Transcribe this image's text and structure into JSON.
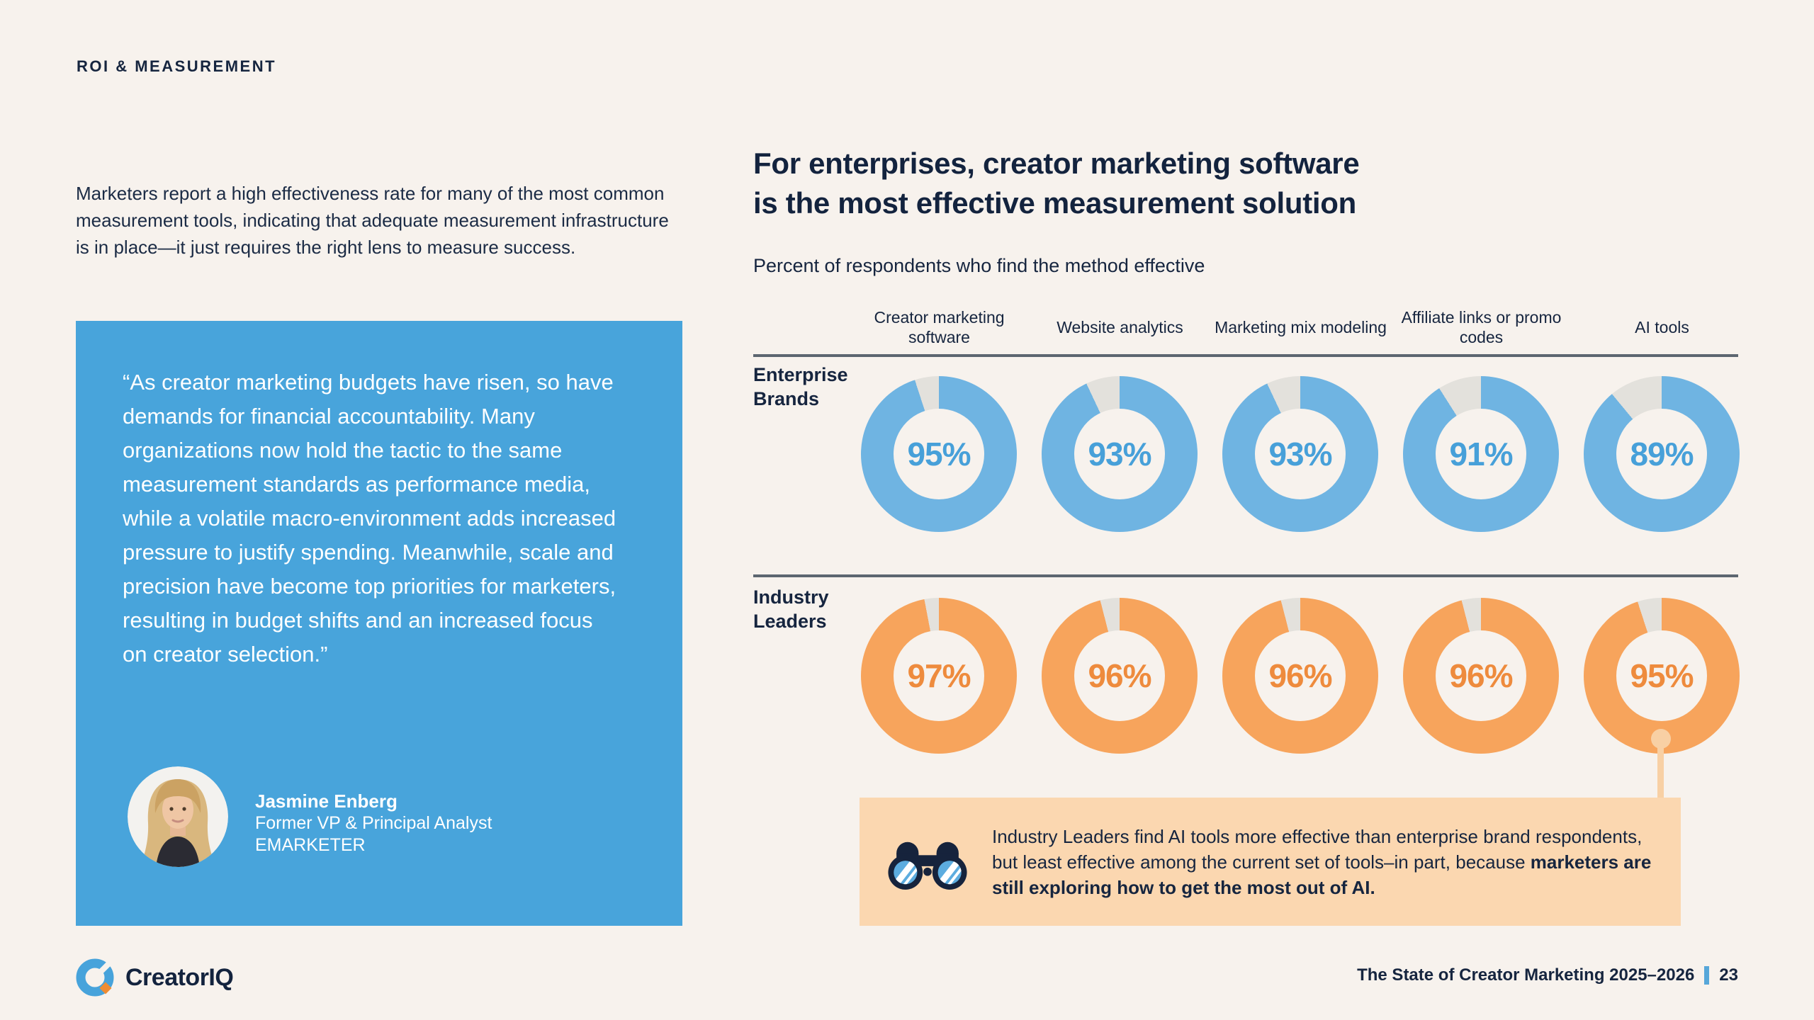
{
  "page": {
    "eyebrow": "ROI & MEASUREMENT",
    "intro": "Marketers report a high effectiveness rate for many of the most common measurement tools, indicating that adequate measurement infrastructure is in place—it just requires the right lens to measure success."
  },
  "quote": {
    "text": "“As creator marketing budgets have risen, so have demands for financial accountability. Many organizations now hold the tactic to the same measurement standards as performance media, while a volatile macro-environment adds increased pressure to justify spending. Meanwhile, scale and precision have become top priorities for marketers, resulting in budget shifts and an increased focus on creator selection.”",
    "author": "Jasmine Enberg",
    "role": "Former VP & Principal Analyst",
    "company": "EMARKETER",
    "card_color": "#48A4DB"
  },
  "chart": {
    "title_lines": {
      "0": "For enterprises, creator marketing software",
      "1": "is the most effective measurement solution"
    },
    "subtitle": "Percent of respondents who find the method effective"
  },
  "chart_data": {
    "type": "donut-grid",
    "unit": "%",
    "gap_color": "#E3E1DC",
    "categories": [
      "Creator marketing software",
      "Website analytics",
      "Marketing mix modeling",
      "Affiliate links or promo codes",
      "AI tools"
    ],
    "series": [
      {
        "name": "Enterprise Brands",
        "values": [
          95,
          93,
          93,
          91,
          89
        ],
        "ring_color": "#6FB4E2",
        "label_color": "#47A0D9"
      },
      {
        "name": "Industry Leaders",
        "values": [
          97,
          96,
          96,
          96,
          95
        ],
        "ring_color": "#F7A45C",
        "label_color": "#EE8B3D"
      }
    ]
  },
  "callout": {
    "text_regular": "Industry Leaders find AI tools more effective than enterprise brand respondents, but least effective among the current set of tools–in part, because ",
    "text_bold": "marketers are still exploring how to get the most out of AI.",
    "box_color": "#FBD7B0"
  },
  "footer": {
    "logo_text": "CreatorIQ",
    "report_title": "The State of Creator Marketing 2025–2026",
    "page_number": "23",
    "separator_color": "#57A7D9"
  }
}
